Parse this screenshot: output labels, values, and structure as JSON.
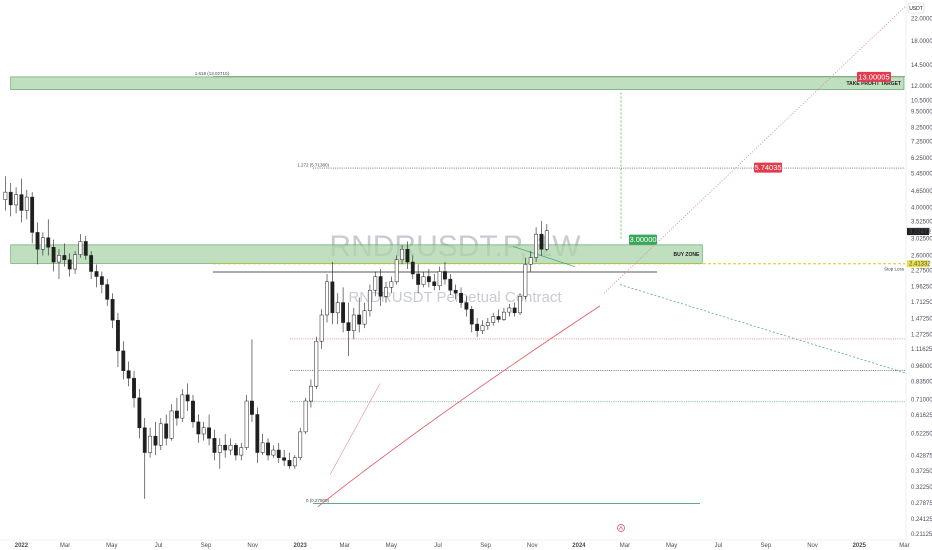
{
  "chart_data": {
    "type": "candlestick",
    "symbol_watermark": "RNDRUSDT.P, 1W",
    "subtitle_watermark": "RNDRUSDT Perpetual Contract",
    "currency": "USDT",
    "y_scale": "log",
    "ylim": [
      0.2,
      26.0
    ],
    "xlim": [
      "2021-12-06",
      "2025-03-03"
    ],
    "y_ticks": [
      "22.00000",
      "18.00000",
      "14.50000",
      "12.00000",
      "10.50000",
      "9.50000",
      "8.25000",
      "7.25000",
      "6.25000",
      "5.45000",
      "4.65000",
      "4.00000",
      "3.52500",
      "3.02500",
      "2.60000",
      "2.27500",
      "1.96250",
      "1.71250",
      "1.47250",
      "1.27250",
      "1.11625",
      "0.96000",
      "0.83500",
      "0.71000",
      "0.61625",
      "0.52250",
      "0.42875",
      "0.37250",
      "0.32250",
      "0.27875",
      "0.24125",
      "0.21125"
    ],
    "x_ticks": [
      {
        "date": "2022-01-03",
        "label": "2022"
      },
      {
        "date": "2022-03-01",
        "label": "Mar"
      },
      {
        "date": "2022-05-01",
        "label": "May"
      },
      {
        "date": "2022-07-01",
        "label": "Jul"
      },
      {
        "date": "2022-09-01",
        "label": "Sep"
      },
      {
        "date": "2022-11-01",
        "label": "Nov"
      },
      {
        "date": "2023-01-02",
        "label": "2023"
      },
      {
        "date": "2023-03-01",
        "label": "Mar"
      },
      {
        "date": "2023-05-01",
        "label": "May"
      },
      {
        "date": "2023-07-01",
        "label": "Jul"
      },
      {
        "date": "2023-09-01",
        "label": "Sep"
      },
      {
        "date": "2023-11-01",
        "label": "Nov"
      },
      {
        "date": "2024-01-01",
        "label": "2024"
      },
      {
        "date": "2024-03-01",
        "label": "Mar"
      },
      {
        "date": "2024-05-01",
        "label": "May"
      },
      {
        "date": "2024-07-01",
        "label": "Jul"
      },
      {
        "date": "2024-09-01",
        "label": "Sep"
      },
      {
        "date": "2024-11-01",
        "label": "Nov"
      },
      {
        "date": "2025-01-01",
        "label": "2025"
      },
      {
        "date": "2025-03-01",
        "label": "Mar"
      }
    ],
    "candles": [
      {
        "d": "2021-12-13",
        "o": 4.3,
        "h": 5.3,
        "c": 4.6,
        "l": 3.9
      },
      {
        "d": "2021-12-20",
        "o": 4.6,
        "h": 5.0,
        "c": 4.1,
        "l": 3.7
      },
      {
        "d": "2021-12-27",
        "o": 4.1,
        "h": 4.8,
        "c": 4.5,
        "l": 3.8
      },
      {
        "d": "2022-01-03",
        "o": 4.5,
        "h": 5.2,
        "c": 3.9,
        "l": 3.5
      },
      {
        "d": "2022-01-10",
        "o": 3.9,
        "h": 4.7,
        "c": 4.4,
        "l": 3.6
      },
      {
        "d": "2022-01-17",
        "o": 4.4,
        "h": 4.6,
        "c": 3.2,
        "l": 2.9
      },
      {
        "d": "2022-01-24",
        "o": 3.2,
        "h": 3.5,
        "c": 2.75,
        "l": 2.4
      },
      {
        "d": "2022-01-31",
        "o": 2.75,
        "h": 3.2,
        "c": 3.05,
        "l": 2.6
      },
      {
        "d": "2022-02-07",
        "o": 3.05,
        "h": 3.6,
        "c": 2.8,
        "l": 2.6
      },
      {
        "d": "2022-02-14",
        "o": 2.8,
        "h": 3.0,
        "c": 2.45,
        "l": 2.25
      },
      {
        "d": "2022-02-21",
        "o": 2.45,
        "h": 2.75,
        "c": 2.6,
        "l": 2.1
      },
      {
        "d": "2022-02-28",
        "o": 2.6,
        "h": 2.9,
        "c": 2.5,
        "l": 2.35
      },
      {
        "d": "2022-03-07",
        "o": 2.5,
        "h": 2.65,
        "c": 2.3,
        "l": 2.15
      },
      {
        "d": "2022-03-14",
        "o": 2.3,
        "h": 2.7,
        "c": 2.62,
        "l": 2.2
      },
      {
        "d": "2022-03-21",
        "o": 2.62,
        "h": 3.15,
        "c": 2.95,
        "l": 2.55
      },
      {
        "d": "2022-03-28",
        "o": 2.95,
        "h": 3.1,
        "c": 2.6,
        "l": 2.5
      },
      {
        "d": "2022-04-04",
        "o": 2.6,
        "h": 2.7,
        "c": 2.25,
        "l": 2.1
      },
      {
        "d": "2022-04-11",
        "o": 2.25,
        "h": 2.4,
        "c": 2.15,
        "l": 1.95
      },
      {
        "d": "2022-04-18",
        "o": 2.15,
        "h": 2.25,
        "c": 2.0,
        "l": 1.85
      },
      {
        "d": "2022-04-25",
        "o": 2.0,
        "h": 2.1,
        "c": 1.75,
        "l": 1.65
      },
      {
        "d": "2022-05-02",
        "o": 1.75,
        "h": 1.85,
        "c": 1.45,
        "l": 1.35
      },
      {
        "d": "2022-05-09",
        "o": 1.45,
        "h": 1.55,
        "c": 1.1,
        "l": 0.95
      },
      {
        "d": "2022-05-16",
        "o": 1.1,
        "h": 1.2,
        "c": 0.92,
        "l": 0.85
      },
      {
        "d": "2022-05-23",
        "o": 0.92,
        "h": 1.0,
        "c": 0.86,
        "l": 0.8
      },
      {
        "d": "2022-05-30",
        "o": 0.86,
        "h": 0.92,
        "c": 0.72,
        "l": 0.66
      },
      {
        "d": "2022-06-06",
        "o": 0.72,
        "h": 0.78,
        "c": 0.55,
        "l": 0.5
      },
      {
        "d": "2022-06-13",
        "o": 0.55,
        "h": 0.6,
        "c": 0.44,
        "l": 0.29
      },
      {
        "d": "2022-06-20",
        "o": 0.44,
        "h": 0.55,
        "c": 0.51,
        "l": 0.42
      },
      {
        "d": "2022-06-27",
        "o": 0.51,
        "h": 0.58,
        "c": 0.47,
        "l": 0.43
      },
      {
        "d": "2022-07-04",
        "o": 0.47,
        "h": 0.6,
        "c": 0.57,
        "l": 0.45
      },
      {
        "d": "2022-07-11",
        "o": 0.57,
        "h": 0.62,
        "c": 0.5,
        "l": 0.47
      },
      {
        "d": "2022-07-18",
        "o": 0.5,
        "h": 0.68,
        "c": 0.64,
        "l": 0.49
      },
      {
        "d": "2022-07-25",
        "o": 0.64,
        "h": 0.72,
        "c": 0.6,
        "l": 0.56
      },
      {
        "d": "2022-08-01",
        "o": 0.6,
        "h": 0.78,
        "c": 0.74,
        "l": 0.58
      },
      {
        "d": "2022-08-08",
        "o": 0.74,
        "h": 0.82,
        "c": 0.7,
        "l": 0.64
      },
      {
        "d": "2022-08-15",
        "o": 0.7,
        "h": 0.74,
        "c": 0.58,
        "l": 0.55
      },
      {
        "d": "2022-08-22",
        "o": 0.58,
        "h": 0.62,
        "c": 0.52,
        "l": 0.48
      },
      {
        "d": "2022-08-29",
        "o": 0.52,
        "h": 0.58,
        "c": 0.55,
        "l": 0.49
      },
      {
        "d": "2022-09-05",
        "o": 0.55,
        "h": 0.62,
        "c": 0.5,
        "l": 0.47
      },
      {
        "d": "2022-09-12",
        "o": 0.5,
        "h": 0.54,
        "c": 0.44,
        "l": 0.41
      },
      {
        "d": "2022-09-19",
        "o": 0.44,
        "h": 0.5,
        "c": 0.47,
        "l": 0.38
      },
      {
        "d": "2022-09-26",
        "o": 0.47,
        "h": 0.52,
        "c": 0.45,
        "l": 0.42
      },
      {
        "d": "2022-10-03",
        "o": 0.45,
        "h": 0.5,
        "c": 0.47,
        "l": 0.43
      },
      {
        "d": "2022-10-10",
        "o": 0.47,
        "h": 0.48,
        "c": 0.43,
        "l": 0.41
      },
      {
        "d": "2022-10-17",
        "o": 0.43,
        "h": 0.48,
        "c": 0.46,
        "l": 0.41
      },
      {
        "d": "2022-10-24",
        "o": 0.46,
        "h": 0.74,
        "c": 0.7,
        "l": 0.45
      },
      {
        "d": "2022-10-31",
        "o": 0.7,
        "h": 1.22,
        "c": 0.62,
        "l": 0.58
      },
      {
        "d": "2022-11-07",
        "o": 0.62,
        "h": 0.66,
        "c": 0.44,
        "l": 0.4
      },
      {
        "d": "2022-11-14",
        "o": 0.44,
        "h": 0.52,
        "c": 0.48,
        "l": 0.43
      },
      {
        "d": "2022-11-21",
        "o": 0.48,
        "h": 0.5,
        "c": 0.43,
        "l": 0.41
      },
      {
        "d": "2022-11-28",
        "o": 0.43,
        "h": 0.47,
        "c": 0.45,
        "l": 0.42
      },
      {
        "d": "2022-12-05",
        "o": 0.45,
        "h": 0.48,
        "c": 0.42,
        "l": 0.4
      },
      {
        "d": "2022-12-12",
        "o": 0.42,
        "h": 0.45,
        "c": 0.41,
        "l": 0.39
      },
      {
        "d": "2022-12-19",
        "o": 0.41,
        "h": 0.44,
        "c": 0.39,
        "l": 0.38
      },
      {
        "d": "2022-12-26",
        "o": 0.39,
        "h": 0.43,
        "c": 0.42,
        "l": 0.38
      },
      {
        "d": "2023-01-02",
        "o": 0.42,
        "h": 0.55,
        "c": 0.53,
        "l": 0.41
      },
      {
        "d": "2023-01-09",
        "o": 0.53,
        "h": 0.72,
        "c": 0.7,
        "l": 0.52
      },
      {
        "d": "2023-01-16",
        "o": 0.7,
        "h": 0.85,
        "c": 0.8,
        "l": 0.66
      },
      {
        "d": "2023-01-23",
        "o": 0.8,
        "h": 1.25,
        "c": 1.2,
        "l": 0.78
      },
      {
        "d": "2023-01-30",
        "o": 1.2,
        "h": 1.6,
        "c": 1.52,
        "l": 1.12
      },
      {
        "d": "2023-02-06",
        "o": 1.52,
        "h": 2.2,
        "c": 2.05,
        "l": 1.42
      },
      {
        "d": "2023-02-13",
        "o": 2.05,
        "h": 2.45,
        "c": 1.55,
        "l": 1.4
      },
      {
        "d": "2023-02-20",
        "o": 1.55,
        "h": 1.85,
        "c": 1.7,
        "l": 1.4
      },
      {
        "d": "2023-02-27",
        "o": 1.7,
        "h": 1.95,
        "c": 1.42,
        "l": 1.3
      },
      {
        "d": "2023-03-06",
        "o": 1.42,
        "h": 1.7,
        "c": 1.32,
        "l": 1.05
      },
      {
        "d": "2023-03-13",
        "o": 1.32,
        "h": 1.62,
        "c": 1.52,
        "l": 1.22
      },
      {
        "d": "2023-03-20",
        "o": 1.52,
        "h": 1.78,
        "c": 1.4,
        "l": 1.3
      },
      {
        "d": "2023-03-27",
        "o": 1.4,
        "h": 1.7,
        "c": 1.58,
        "l": 1.35
      },
      {
        "d": "2023-04-03",
        "o": 1.58,
        "h": 2.0,
        "c": 1.9,
        "l": 1.5
      },
      {
        "d": "2023-04-10",
        "o": 1.9,
        "h": 2.25,
        "c": 2.15,
        "l": 1.8
      },
      {
        "d": "2023-04-17",
        "o": 2.15,
        "h": 2.3,
        "c": 1.8,
        "l": 1.65
      },
      {
        "d": "2023-04-24",
        "o": 1.8,
        "h": 2.05,
        "c": 1.95,
        "l": 1.7
      },
      {
        "d": "2023-05-01",
        "o": 1.95,
        "h": 2.15,
        "c": 2.05,
        "l": 1.85
      },
      {
        "d": "2023-05-08",
        "o": 2.05,
        "h": 2.6,
        "c": 2.5,
        "l": 2.0
      },
      {
        "d": "2023-05-15",
        "o": 2.5,
        "h": 2.85,
        "c": 2.75,
        "l": 2.4
      },
      {
        "d": "2023-05-22",
        "o": 2.75,
        "h": 2.95,
        "c": 2.45,
        "l": 2.3
      },
      {
        "d": "2023-05-29",
        "o": 2.45,
        "h": 2.6,
        "c": 2.2,
        "l": 2.1
      },
      {
        "d": "2023-06-05",
        "o": 2.2,
        "h": 2.4,
        "c": 2.0,
        "l": 1.85
      },
      {
        "d": "2023-06-12",
        "o": 2.0,
        "h": 2.25,
        "c": 2.15,
        "l": 1.95
      },
      {
        "d": "2023-06-19",
        "o": 2.15,
        "h": 2.3,
        "c": 2.05,
        "l": 1.95
      },
      {
        "d": "2023-06-26",
        "o": 2.05,
        "h": 2.2,
        "c": 1.98,
        "l": 1.9
      },
      {
        "d": "2023-07-03",
        "o": 1.98,
        "h": 2.35,
        "c": 2.25,
        "l": 1.9
      },
      {
        "d": "2023-07-10",
        "o": 2.25,
        "h": 2.45,
        "c": 2.1,
        "l": 2.0
      },
      {
        "d": "2023-07-17",
        "o": 2.1,
        "h": 2.2,
        "c": 1.9,
        "l": 1.82
      },
      {
        "d": "2023-07-24",
        "o": 1.9,
        "h": 2.0,
        "c": 1.85,
        "l": 1.75
      },
      {
        "d": "2023-07-31",
        "o": 1.85,
        "h": 1.95,
        "c": 1.7,
        "l": 1.62
      },
      {
        "d": "2023-08-07",
        "o": 1.7,
        "h": 1.8,
        "c": 1.6,
        "l": 1.5
      },
      {
        "d": "2023-08-14",
        "o": 1.6,
        "h": 1.65,
        "c": 1.4,
        "l": 1.3
      },
      {
        "d": "2023-08-21",
        "o": 1.4,
        "h": 1.48,
        "c": 1.32,
        "l": 1.25
      },
      {
        "d": "2023-08-28",
        "o": 1.32,
        "h": 1.45,
        "c": 1.38,
        "l": 1.28
      },
      {
        "d": "2023-09-04",
        "o": 1.38,
        "h": 1.48,
        "c": 1.42,
        "l": 1.33
      },
      {
        "d": "2023-09-11",
        "o": 1.42,
        "h": 1.55,
        "c": 1.5,
        "l": 1.38
      },
      {
        "d": "2023-09-18",
        "o": 1.5,
        "h": 1.6,
        "c": 1.46,
        "l": 1.42
      },
      {
        "d": "2023-09-25",
        "o": 1.46,
        "h": 1.62,
        "c": 1.56,
        "l": 1.44
      },
      {
        "d": "2023-10-02",
        "o": 1.56,
        "h": 1.68,
        "c": 1.62,
        "l": 1.5
      },
      {
        "d": "2023-10-09",
        "o": 1.62,
        "h": 1.7,
        "c": 1.55,
        "l": 1.5
      },
      {
        "d": "2023-10-16",
        "o": 1.55,
        "h": 1.85,
        "c": 1.8,
        "l": 1.52
      },
      {
        "d": "2023-10-23",
        "o": 1.8,
        "h": 2.55,
        "c": 2.4,
        "l": 1.75
      },
      {
        "d": "2023-10-30",
        "o": 2.4,
        "h": 2.7,
        "c": 2.55,
        "l": 2.25
      },
      {
        "d": "2023-11-06",
        "o": 2.55,
        "h": 3.35,
        "c": 3.15,
        "l": 2.45
      },
      {
        "d": "2023-11-13",
        "o": 3.15,
        "h": 3.55,
        "c": 2.75,
        "l": 2.6
      },
      {
        "d": "2023-11-20",
        "o": 2.75,
        "h": 3.45,
        "c": 3.25,
        "l": 2.7
      }
    ],
    "zones": [
      {
        "name": "TAKE PROFIT TARGET",
        "from": 11.6,
        "to": 13.0,
        "x_from": "2021-12-20",
        "x_to": "2025-03-03"
      },
      {
        "name": "BUY ZONE",
        "from": 2.42,
        "to": 2.86,
        "x_from": "2021-12-20",
        "x_to": "2024-06-10"
      }
    ],
    "levels": [
      {
        "label": "1.618 (13.02710)",
        "value": 13.0271,
        "style": "solid"
      },
      {
        "label": "1.272 (5.71380)",
        "value": 5.7138,
        "style": "dotted"
      },
      {
        "label": "Stop Loss",
        "value": 2.41332,
        "style": "dashed-yellow"
      },
      {
        "label": "",
        "value": 2.24,
        "style": "solid-dark"
      },
      {
        "label": "",
        "value": 1.225,
        "style": "dotted-red"
      },
      {
        "label": "",
        "value": 0.92,
        "style": "dotted-dark"
      },
      {
        "label": "",
        "value": 0.695,
        "style": "dotted-green"
      },
      {
        "label": "0 (0.27800)",
        "value": 0.278,
        "style": "solid-teal"
      }
    ],
    "price_tags": [
      {
        "label": "13.00005",
        "value": 13.00005
      },
      {
        "label": "5.74035",
        "value": 5.74035
      },
      {
        "label": "3.00000",
        "value": 3.0
      }
    ],
    "right_axis_tags": [
      {
        "label": "3.24810",
        "value": 3.2481
      },
      {
        "label": "3.22472",
        "value": 3.22472
      },
      {
        "label": "2.41332",
        "value": 2.41332
      }
    ],
    "grid": false,
    "legend": "none"
  }
}
